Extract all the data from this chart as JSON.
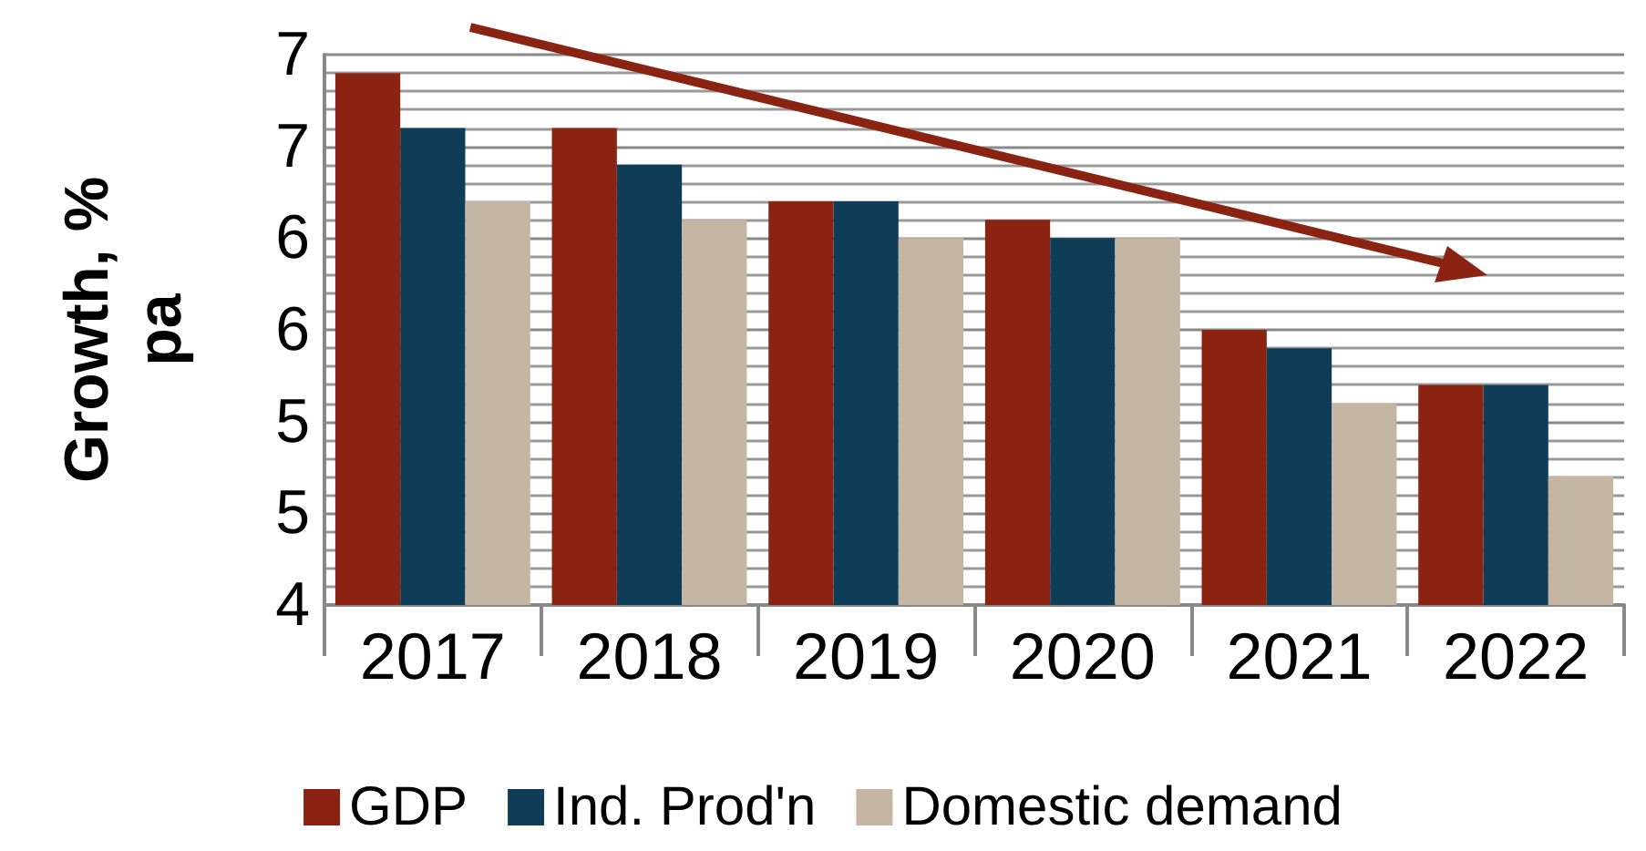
{
  "chart_data": {
    "type": "bar",
    "ylabel": "Growth, %\npa",
    "categories": [
      "2017",
      "2018",
      "2019",
      "2020",
      "2021",
      "2022"
    ],
    "series": [
      {
        "name": "GDP",
        "color": "#8b2312",
        "values": [
          6.9,
          6.6,
          6.2,
          6.1,
          5.5,
          5.2
        ]
      },
      {
        "name": "Ind. Prod'n",
        "color": "#0f3d58",
        "values": [
          6.6,
          6.4,
          6.2,
          6.0,
          5.4,
          5.2
        ]
      },
      {
        "name": "Domestic demand",
        "color": "#c4b6a3",
        "values": [
          6.2,
          6.1,
          6.0,
          6.0,
          5.1,
          4.7
        ]
      }
    ],
    "ylim": [
      4,
      7
    ],
    "yticks": [
      {
        "value": 4,
        "label": "4"
      },
      {
        "value": 4.5,
        "label": "5"
      },
      {
        "value": 5,
        "label": "5"
      },
      {
        "value": 5.5,
        "label": "6"
      },
      {
        "value": 6,
        "label": "6"
      },
      {
        "value": 6.5,
        "label": "7"
      },
      {
        "value": 7,
        "label": "7"
      }
    ],
    "grid": "y",
    "legend": "bottom"
  }
}
